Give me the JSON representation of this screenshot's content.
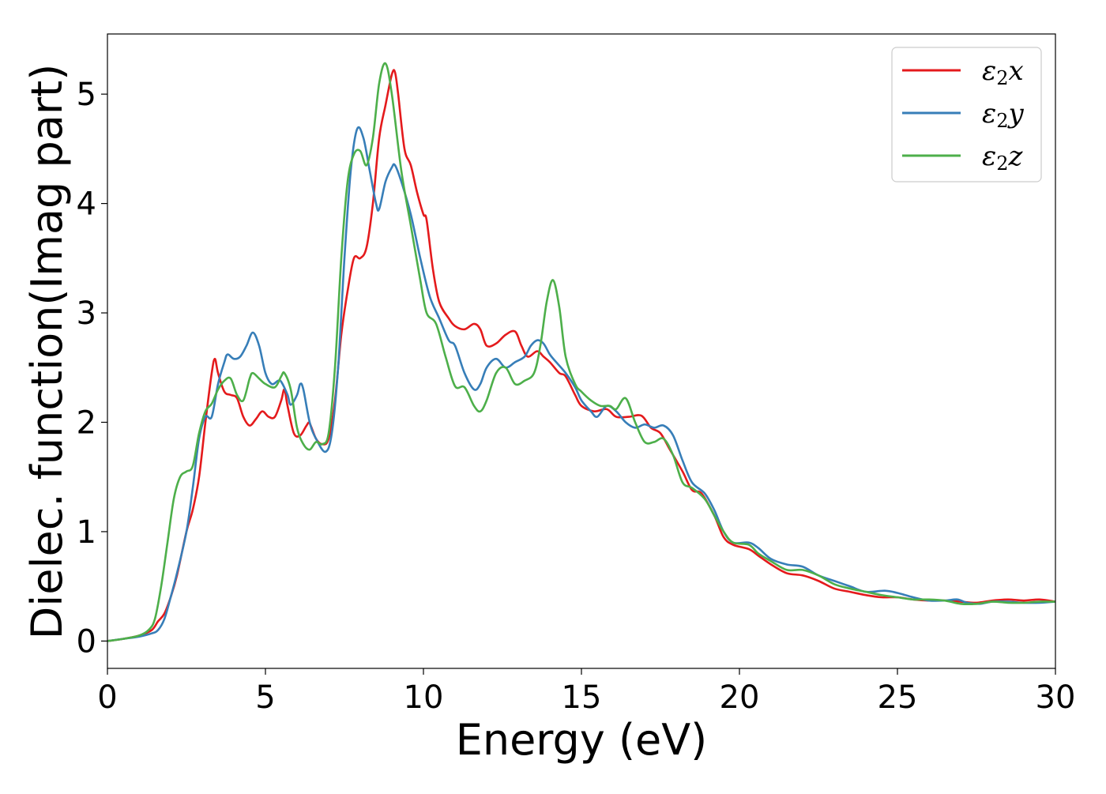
{
  "chart_data": {
    "type": "line",
    "xlabel": "Energy (eV)",
    "ylabel": "Dielec. function(Imag part)",
    "xlim": [
      0,
      30
    ],
    "ylim": [
      -0.25,
      5.55
    ],
    "xticks": [
      0,
      5,
      10,
      15,
      20,
      25,
      30
    ],
    "yticks": [
      0,
      1,
      2,
      3,
      4,
      5
    ],
    "grid": false,
    "legend_position": "top-right",
    "series": [
      {
        "name": "ε₂x",
        "legend_base": "ε",
        "legend_sub": "2",
        "legend_var": "x",
        "color": "#e41a1c",
        "points": [
          [
            0,
            0
          ],
          [
            0.5,
            0.02
          ],
          [
            1.0,
            0.05
          ],
          [
            1.4,
            0.1
          ],
          [
            1.6,
            0.18
          ],
          [
            1.8,
            0.25
          ],
          [
            2.0,
            0.4
          ],
          [
            2.2,
            0.6
          ],
          [
            2.5,
            1.0
          ],
          [
            2.7,
            1.2
          ],
          [
            2.9,
            1.5
          ],
          [
            3.1,
            2.0
          ],
          [
            3.3,
            2.45
          ],
          [
            3.4,
            2.58
          ],
          [
            3.5,
            2.45
          ],
          [
            3.7,
            2.28
          ],
          [
            3.9,
            2.25
          ],
          [
            4.1,
            2.22
          ],
          [
            4.3,
            2.05
          ],
          [
            4.5,
            1.97
          ],
          [
            4.7,
            2.03
          ],
          [
            4.9,
            2.1
          ],
          [
            5.1,
            2.05
          ],
          [
            5.3,
            2.05
          ],
          [
            5.5,
            2.2
          ],
          [
            5.6,
            2.3
          ],
          [
            5.7,
            2.15
          ],
          [
            5.9,
            1.9
          ],
          [
            6.1,
            1.88
          ],
          [
            6.3,
            1.97
          ],
          [
            6.4,
            1.99
          ],
          [
            6.6,
            1.85
          ],
          [
            6.8,
            1.8
          ],
          [
            7.0,
            1.85
          ],
          [
            7.2,
            2.2
          ],
          [
            7.4,
            2.8
          ],
          [
            7.6,
            3.2
          ],
          [
            7.8,
            3.5
          ],
          [
            8.0,
            3.5
          ],
          [
            8.2,
            3.6
          ],
          [
            8.4,
            4.0
          ],
          [
            8.6,
            4.6
          ],
          [
            8.8,
            4.9
          ],
          [
            9.0,
            5.18
          ],
          [
            9.1,
            5.2
          ],
          [
            9.2,
            5.0
          ],
          [
            9.4,
            4.5
          ],
          [
            9.6,
            4.35
          ],
          [
            9.8,
            4.1
          ],
          [
            10.0,
            3.9
          ],
          [
            10.1,
            3.85
          ],
          [
            10.3,
            3.4
          ],
          [
            10.5,
            3.1
          ],
          [
            10.8,
            2.95
          ],
          [
            11.0,
            2.88
          ],
          [
            11.3,
            2.85
          ],
          [
            11.6,
            2.9
          ],
          [
            11.8,
            2.85
          ],
          [
            12.0,
            2.7
          ],
          [
            12.3,
            2.72
          ],
          [
            12.6,
            2.8
          ],
          [
            12.9,
            2.83
          ],
          [
            13.1,
            2.7
          ],
          [
            13.3,
            2.6
          ],
          [
            13.6,
            2.65
          ],
          [
            13.8,
            2.6
          ],
          [
            14.0,
            2.55
          ],
          [
            14.3,
            2.45
          ],
          [
            14.5,
            2.42
          ],
          [
            14.8,
            2.25
          ],
          [
            15.0,
            2.15
          ],
          [
            15.4,
            2.1
          ],
          [
            15.8,
            2.12
          ],
          [
            16.1,
            2.05
          ],
          [
            16.5,
            2.05
          ],
          [
            16.9,
            2.06
          ],
          [
            17.2,
            1.95
          ],
          [
            17.5,
            1.9
          ],
          [
            17.8,
            1.75
          ],
          [
            18.2,
            1.55
          ],
          [
            18.5,
            1.38
          ],
          [
            18.8,
            1.35
          ],
          [
            19.2,
            1.15
          ],
          [
            19.5,
            0.95
          ],
          [
            19.8,
            0.88
          ],
          [
            20.3,
            0.84
          ],
          [
            20.6,
            0.78
          ],
          [
            21.0,
            0.7
          ],
          [
            21.5,
            0.62
          ],
          [
            22.0,
            0.6
          ],
          [
            22.5,
            0.55
          ],
          [
            23.0,
            0.48
          ],
          [
            23.5,
            0.45
          ],
          [
            24.0,
            0.42
          ],
          [
            24.5,
            0.4
          ],
          [
            25.0,
            0.4
          ],
          [
            25.5,
            0.38
          ],
          [
            26.0,
            0.37
          ],
          [
            26.5,
            0.37
          ],
          [
            27.0,
            0.36
          ],
          [
            27.5,
            0.35
          ],
          [
            28.0,
            0.37
          ],
          [
            28.5,
            0.38
          ],
          [
            29.0,
            0.37
          ],
          [
            29.5,
            0.38
          ],
          [
            30.0,
            0.36
          ]
        ]
      },
      {
        "name": "ε₂y",
        "legend_base": "ε",
        "legend_sub": "2",
        "legend_var": "y",
        "color": "#377eb8",
        "points": [
          [
            0,
            0
          ],
          [
            0.5,
            0.02
          ],
          [
            1.0,
            0.04
          ],
          [
            1.4,
            0.07
          ],
          [
            1.6,
            0.1
          ],
          [
            1.8,
            0.2
          ],
          [
            2.0,
            0.4
          ],
          [
            2.2,
            0.62
          ],
          [
            2.5,
            1.0
          ],
          [
            2.7,
            1.4
          ],
          [
            2.9,
            1.85
          ],
          [
            3.1,
            2.05
          ],
          [
            3.3,
            2.05
          ],
          [
            3.5,
            2.35
          ],
          [
            3.7,
            2.55
          ],
          [
            3.8,
            2.62
          ],
          [
            4.0,
            2.58
          ],
          [
            4.2,
            2.6
          ],
          [
            4.4,
            2.7
          ],
          [
            4.6,
            2.82
          ],
          [
            4.8,
            2.7
          ],
          [
            5.0,
            2.45
          ],
          [
            5.2,
            2.35
          ],
          [
            5.4,
            2.38
          ],
          [
            5.5,
            2.37
          ],
          [
            5.7,
            2.25
          ],
          [
            5.8,
            2.16
          ],
          [
            6.0,
            2.25
          ],
          [
            6.1,
            2.35
          ],
          [
            6.2,
            2.3
          ],
          [
            6.4,
            2.0
          ],
          [
            6.6,
            1.85
          ],
          [
            6.9,
            1.73
          ],
          [
            7.1,
            1.9
          ],
          [
            7.3,
            2.5
          ],
          [
            7.5,
            3.5
          ],
          [
            7.7,
            4.3
          ],
          [
            7.9,
            4.68
          ],
          [
            8.1,
            4.6
          ],
          [
            8.3,
            4.3
          ],
          [
            8.5,
            4.0
          ],
          [
            8.6,
            3.95
          ],
          [
            8.8,
            4.2
          ],
          [
            9.0,
            4.33
          ],
          [
            9.1,
            4.35
          ],
          [
            9.3,
            4.2
          ],
          [
            9.6,
            3.9
          ],
          [
            9.9,
            3.5
          ],
          [
            10.2,
            3.15
          ],
          [
            10.5,
            2.95
          ],
          [
            10.8,
            2.75
          ],
          [
            11.0,
            2.7
          ],
          [
            11.3,
            2.45
          ],
          [
            11.6,
            2.3
          ],
          [
            11.8,
            2.35
          ],
          [
            12.0,
            2.5
          ],
          [
            12.3,
            2.58
          ],
          [
            12.6,
            2.5
          ],
          [
            12.9,
            2.55
          ],
          [
            13.2,
            2.6
          ],
          [
            13.4,
            2.7
          ],
          [
            13.6,
            2.75
          ],
          [
            13.8,
            2.72
          ],
          [
            14.0,
            2.62
          ],
          [
            14.2,
            2.55
          ],
          [
            14.5,
            2.45
          ],
          [
            14.8,
            2.32
          ],
          [
            15.0,
            2.2
          ],
          [
            15.3,
            2.1
          ],
          [
            15.5,
            2.05
          ],
          [
            15.8,
            2.15
          ],
          [
            16.1,
            2.1
          ],
          [
            16.4,
            2.0
          ],
          [
            16.7,
            1.95
          ],
          [
            17.0,
            1.98
          ],
          [
            17.3,
            1.95
          ],
          [
            17.6,
            1.97
          ],
          [
            17.9,
            1.88
          ],
          [
            18.2,
            1.65
          ],
          [
            18.5,
            1.45
          ],
          [
            18.9,
            1.35
          ],
          [
            19.2,
            1.2
          ],
          [
            19.5,
            1.0
          ],
          [
            19.8,
            0.9
          ],
          [
            20.3,
            0.9
          ],
          [
            20.6,
            0.85
          ],
          [
            21.0,
            0.75
          ],
          [
            21.5,
            0.7
          ],
          [
            22.0,
            0.68
          ],
          [
            22.5,
            0.6
          ],
          [
            23.0,
            0.55
          ],
          [
            23.5,
            0.5
          ],
          [
            24.0,
            0.45
          ],
          [
            24.6,
            0.46
          ],
          [
            25.0,
            0.44
          ],
          [
            25.5,
            0.4
          ],
          [
            26.0,
            0.37
          ],
          [
            26.5,
            0.37
          ],
          [
            26.9,
            0.38
          ],
          [
            27.2,
            0.35
          ],
          [
            27.6,
            0.34
          ],
          [
            28.0,
            0.36
          ],
          [
            28.5,
            0.36
          ],
          [
            29.0,
            0.35
          ],
          [
            29.5,
            0.35
          ],
          [
            30.0,
            0.36
          ]
        ]
      },
      {
        "name": "ε₂z",
        "legend_base": "ε",
        "legend_sub": "2",
        "legend_var": "z",
        "color": "#4daf4a",
        "points": [
          [
            0,
            0
          ],
          [
            0.5,
            0.02
          ],
          [
            1.0,
            0.05
          ],
          [
            1.3,
            0.1
          ],
          [
            1.5,
            0.2
          ],
          [
            1.7,
            0.5
          ],
          [
            1.9,
            0.9
          ],
          [
            2.1,
            1.3
          ],
          [
            2.3,
            1.5
          ],
          [
            2.5,
            1.55
          ],
          [
            2.7,
            1.6
          ],
          [
            2.9,
            1.9
          ],
          [
            3.1,
            2.1
          ],
          [
            3.3,
            2.17
          ],
          [
            3.5,
            2.3
          ],
          [
            3.7,
            2.38
          ],
          [
            3.9,
            2.4
          ],
          [
            4.1,
            2.25
          ],
          [
            4.3,
            2.2
          ],
          [
            4.5,
            2.4
          ],
          [
            4.6,
            2.45
          ],
          [
            4.8,
            2.4
          ],
          [
            5.0,
            2.35
          ],
          [
            5.3,
            2.32
          ],
          [
            5.5,
            2.42
          ],
          [
            5.6,
            2.45
          ],
          [
            5.8,
            2.3
          ],
          [
            6.0,
            1.95
          ],
          [
            6.2,
            1.8
          ],
          [
            6.4,
            1.75
          ],
          [
            6.6,
            1.82
          ],
          [
            6.8,
            1.8
          ],
          [
            7.0,
            1.9
          ],
          [
            7.2,
            2.5
          ],
          [
            7.4,
            3.5
          ],
          [
            7.6,
            4.2
          ],
          [
            7.8,
            4.45
          ],
          [
            8.0,
            4.48
          ],
          [
            8.2,
            4.35
          ],
          [
            8.4,
            4.6
          ],
          [
            8.6,
            5.1
          ],
          [
            8.8,
            5.28
          ],
          [
            9.0,
            5.0
          ],
          [
            9.3,
            4.3
          ],
          [
            9.6,
            3.8
          ],
          [
            9.9,
            3.3
          ],
          [
            10.1,
            3.0
          ],
          [
            10.4,
            2.9
          ],
          [
            10.7,
            2.6
          ],
          [
            11.0,
            2.33
          ],
          [
            11.3,
            2.32
          ],
          [
            11.6,
            2.15
          ],
          [
            11.8,
            2.1
          ],
          [
            12.0,
            2.2
          ],
          [
            12.3,
            2.45
          ],
          [
            12.6,
            2.5
          ],
          [
            12.9,
            2.35
          ],
          [
            13.2,
            2.38
          ],
          [
            13.5,
            2.45
          ],
          [
            13.7,
            2.7
          ],
          [
            13.9,
            3.1
          ],
          [
            14.1,
            3.3
          ],
          [
            14.3,
            3.05
          ],
          [
            14.5,
            2.6
          ],
          [
            14.8,
            2.35
          ],
          [
            15.0,
            2.28
          ],
          [
            15.3,
            2.2
          ],
          [
            15.6,
            2.15
          ],
          [
            15.9,
            2.15
          ],
          [
            16.1,
            2.12
          ],
          [
            16.4,
            2.22
          ],
          [
            16.7,
            2.0
          ],
          [
            17.0,
            1.82
          ],
          [
            17.3,
            1.82
          ],
          [
            17.6,
            1.85
          ],
          [
            17.9,
            1.7
          ],
          [
            18.2,
            1.45
          ],
          [
            18.5,
            1.4
          ],
          [
            18.9,
            1.3
          ],
          [
            19.2,
            1.15
          ],
          [
            19.5,
            1.0
          ],
          [
            19.8,
            0.9
          ],
          [
            20.3,
            0.88
          ],
          [
            20.6,
            0.8
          ],
          [
            21.0,
            0.73
          ],
          [
            21.5,
            0.65
          ],
          [
            22.0,
            0.65
          ],
          [
            22.5,
            0.6
          ],
          [
            23.0,
            0.52
          ],
          [
            23.5,
            0.48
          ],
          [
            24.0,
            0.45
          ],
          [
            24.5,
            0.42
          ],
          [
            25.0,
            0.4
          ],
          [
            25.5,
            0.38
          ],
          [
            26.0,
            0.38
          ],
          [
            26.5,
            0.37
          ],
          [
            27.0,
            0.34
          ],
          [
            27.5,
            0.34
          ],
          [
            28.0,
            0.36
          ],
          [
            28.5,
            0.35
          ],
          [
            29.0,
            0.35
          ],
          [
            29.5,
            0.36
          ],
          [
            30.0,
            0.36
          ]
        ]
      }
    ]
  }
}
